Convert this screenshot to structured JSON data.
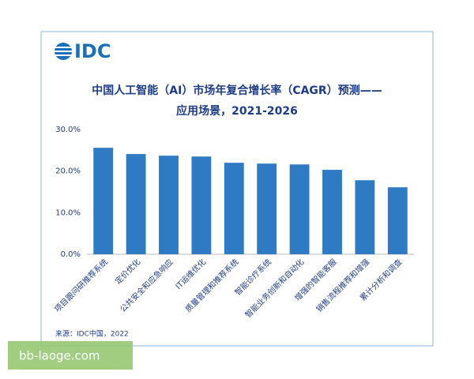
{
  "logo": "IDC",
  "watermark": "bb-laoge.com",
  "chart_data": {
    "type": "bar",
    "title": [
      "中国人工智能（AI）市场年复合增长率（CAGR）预测——",
      "应用场景，2021-2026"
    ],
    "categories": [
      "项目跟问研推荐系统",
      "定价优化",
      "公共安全和应急响应",
      "IT运维优化",
      "质量管理和推荐系统",
      "智能诊疗系统",
      "智能业务创新和自动化",
      "增强的智能客服",
      "销售流程推荐和增强",
      "累计分析和调查"
    ],
    "values": [
      25.6,
      24.1,
      23.7,
      23.5,
      22.0,
      21.8,
      21.6,
      20.3,
      17.8,
      16.1
    ],
    "color": "#2e7bc4",
    "ylim": [
      0,
      30
    ],
    "yticks": [
      {
        "value": 0,
        "label": "0.0%"
      },
      {
        "value": 10,
        "label": "10.0%"
      },
      {
        "value": 20,
        "label": "20.0%"
      },
      {
        "value": 30,
        "label": "30.0%"
      }
    ],
    "grid": false,
    "source": "来源：IDC中国，2022"
  }
}
